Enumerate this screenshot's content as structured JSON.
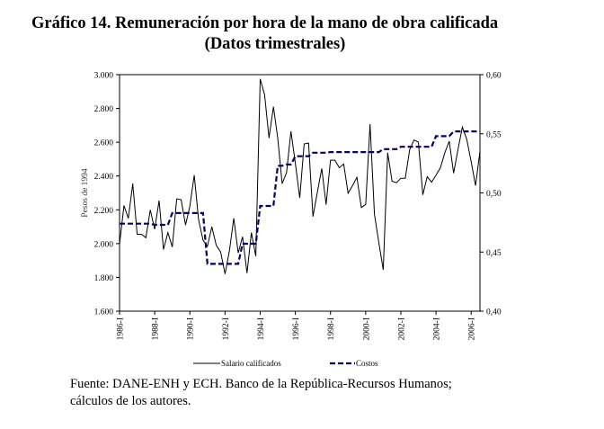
{
  "chart_data": {
    "type": "line",
    "title": "Gráfico 14. Remuneración por hora de la mano de obra calificada",
    "subtitle": "(Datos trimestrales)",
    "ylabel": "Pesos de 1994",
    "ylabel_right": "",
    "ylim": [
      1600,
      3000
    ],
    "ylim_right": [
      0.4,
      0.6
    ],
    "yticks": [
      "1.600",
      "1.800",
      "2.000",
      "2.200",
      "2.400",
      "2.600",
      "2.800",
      "3.000"
    ],
    "yticks_right": [
      "0,40",
      "0,45",
      "0,50",
      "0,55",
      "0,60"
    ],
    "xticks": [
      "1986-I",
      "1988-I",
      "1990-I",
      "1992-I",
      "1994-I",
      "1996-I",
      "1998-I",
      "2000-I",
      "2002-I",
      "2004-I",
      "2006-I"
    ],
    "x_start": "1986-I",
    "frequency": "quarterly",
    "legend_position": "bottom",
    "series": [
      {
        "name": "Salario calificados",
        "axis": "left",
        "color": "#000000",
        "style": "solid",
        "values": [
          1995,
          2225,
          2150,
          2355,
          2055,
          2055,
          2035,
          2200,
          2085,
          2255,
          1965,
          2065,
          1980,
          2265,
          2260,
          2110,
          2220,
          2405,
          2140,
          2020,
          1985,
          2100,
          1990,
          1950,
          1820,
          1960,
          2150,
          1945,
          2040,
          1825,
          2065,
          1925,
          2975,
          2880,
          2625,
          2810,
          2625,
          2355,
          2420,
          2665,
          2475,
          2270,
          2590,
          2595,
          2160,
          2305,
          2445,
          2230,
          2494,
          2494,
          2449,
          2471,
          2298,
          2343,
          2392,
          2214,
          2232,
          2707,
          2174,
          2005,
          1845,
          2538,
          2369,
          2360,
          2387,
          2387,
          2556,
          2613,
          2600,
          2289,
          2396,
          2364,
          2405,
          2449,
          2538,
          2606,
          2417,
          2556,
          2689,
          2618,
          2485,
          2343,
          2547
        ]
      },
      {
        "name": "Costos",
        "axis": "right",
        "color": "#000066",
        "style": "dashed",
        "values": [
          0.474,
          0.474,
          0.474,
          0.474,
          0.474,
          0.474,
          0.474,
          0.474,
          0.473,
          0.473,
          0.473,
          0.473,
          0.483,
          0.483,
          0.483,
          0.483,
          0.483,
          0.483,
          0.483,
          0.483,
          0.44,
          0.44,
          0.44,
          0.44,
          0.44,
          0.44,
          0.44,
          0.44,
          0.457,
          0.457,
          0.457,
          0.457,
          0.489,
          0.489,
          0.489,
          0.489,
          0.523,
          0.523,
          0.524,
          0.524,
          0.531,
          0.531,
          0.531,
          0.531,
          0.534,
          0.534,
          0.534,
          0.534,
          0.5345,
          0.5345,
          0.5345,
          0.5345,
          0.5345,
          0.5345,
          0.5345,
          0.5345,
          0.5345,
          0.5345,
          0.5345,
          0.5345,
          0.537,
          0.537,
          0.537,
          0.537,
          0.539,
          0.539,
          0.539,
          0.539,
          0.539,
          0.539,
          0.539,
          0.539,
          0.548,
          0.548,
          0.548,
          0.548,
          0.552,
          0.552,
          0.552,
          0.552,
          0.552,
          0.552,
          0.552
        ]
      }
    ]
  },
  "footer": {
    "line1": "Fuente: DANE-ENH y ECH. Banco de la República-Recursos Humanos;",
    "line2": "cálculos de los autores."
  }
}
